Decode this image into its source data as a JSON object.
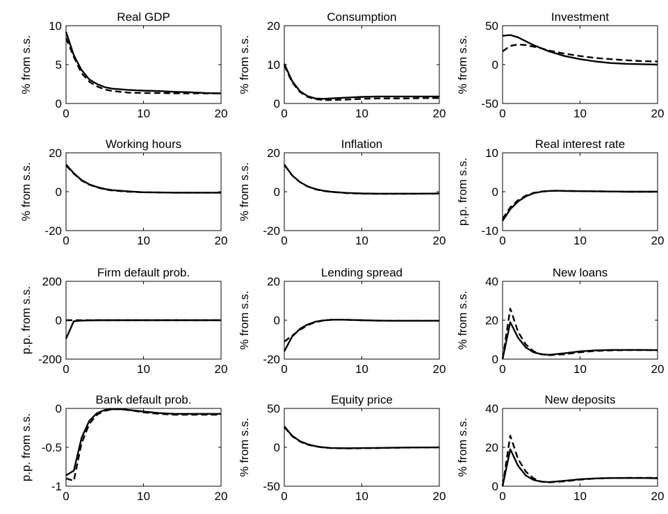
{
  "chart_data": [
    {
      "type": "line",
      "title": "Real GDP",
      "xlabel": "",
      "ylabel": "% from s.s.",
      "xlim": [
        0,
        20
      ],
      "ylim": [
        0,
        10
      ],
      "xticks": [
        "0",
        "10",
        "20"
      ],
      "yticks": [
        "0",
        "5",
        "10"
      ],
      "grid": false,
      "series": [
        {
          "style": "solid",
          "x": [
            0,
            1,
            2,
            3,
            4,
            5,
            6,
            8,
            10,
            12,
            14,
            16,
            18,
            20
          ],
          "y": [
            9.2,
            6.2,
            4.3,
            3.1,
            2.5,
            2.1,
            1.9,
            1.75,
            1.65,
            1.6,
            1.5,
            1.45,
            1.35,
            1.3
          ]
        },
        {
          "style": "dashed",
          "x": [
            0,
            1,
            2,
            3,
            4,
            5,
            6,
            8,
            10,
            12,
            14,
            16,
            18,
            20
          ],
          "y": [
            8.4,
            6.0,
            3.9,
            2.8,
            2.2,
            1.8,
            1.6,
            1.4,
            1.35,
            1.35,
            1.3,
            1.3,
            1.3,
            1.3
          ]
        }
      ]
    },
    {
      "type": "line",
      "title": "Consumption",
      "xlabel": "",
      "ylabel": "% from s.s.",
      "xlim": [
        0,
        20
      ],
      "ylim": [
        0,
        20
      ],
      "xticks": [
        "0",
        "10",
        "20"
      ],
      "yticks": [
        "0",
        "10",
        "20"
      ],
      "grid": false,
      "series": [
        {
          "style": "solid",
          "x": [
            0,
            1,
            2,
            3,
            4,
            5,
            6,
            8,
            10,
            12,
            14,
            16,
            18,
            20
          ],
          "y": [
            10.2,
            5.8,
            3.2,
            1.9,
            1.3,
            1.2,
            1.3,
            1.5,
            1.7,
            1.8,
            1.8,
            1.8,
            1.8,
            1.8
          ]
        },
        {
          "style": "dashed",
          "x": [
            0,
            1,
            2,
            3,
            4,
            5,
            6,
            8,
            10,
            12,
            14,
            16,
            18,
            20
          ],
          "y": [
            9.8,
            5.5,
            3.0,
            1.7,
            1.1,
            0.9,
            0.9,
            1.0,
            1.2,
            1.3,
            1.3,
            1.3,
            1.4,
            1.4
          ]
        }
      ]
    },
    {
      "type": "line",
      "title": "Investment",
      "xlabel": "",
      "ylabel": "% from s.s.",
      "xlim": [
        0,
        20
      ],
      "ylim": [
        -50,
        50
      ],
      "xticks": [
        "0",
        "10",
        "20"
      ],
      "yticks": [
        "-50",
        "0",
        "50"
      ],
      "grid": false,
      "series": [
        {
          "style": "solid",
          "x": [
            0,
            1,
            2,
            3,
            4,
            5,
            6,
            8,
            10,
            12,
            14,
            16,
            18,
            20
          ],
          "y": [
            37,
            38,
            35,
            30,
            25,
            21,
            17,
            11,
            7,
            4,
            2,
            1,
            0.5,
            0
          ]
        },
        {
          "style": "dashed",
          "x": [
            0,
            1,
            2,
            3,
            4,
            5,
            6,
            8,
            10,
            12,
            14,
            16,
            18,
            20
          ],
          "y": [
            17,
            24,
            26,
            25,
            23,
            21,
            18,
            14,
            11,
            8.5,
            7,
            5.5,
            4.5,
            4
          ]
        }
      ]
    },
    {
      "type": "line",
      "title": "Working hours",
      "xlabel": "",
      "ylabel": "% from s.s.",
      "xlim": [
        0,
        20
      ],
      "ylim": [
        -20,
        20
      ],
      "xticks": [
        "0",
        "10",
        "20"
      ],
      "yticks": [
        "-20",
        "0",
        "20"
      ],
      "grid": false,
      "series": [
        {
          "style": "solid",
          "x": [
            0,
            1,
            2,
            3,
            4,
            5,
            6,
            8,
            10,
            12,
            14,
            16,
            18,
            20
          ],
          "y": [
            14,
            9.5,
            6.0,
            3.8,
            2.4,
            1.4,
            0.8,
            0.2,
            -0.3,
            -0.4,
            -0.5,
            -0.5,
            -0.5,
            -0.5
          ]
        },
        {
          "style": "dashed",
          "x": [
            0,
            1,
            2,
            3,
            4,
            5,
            6,
            8,
            10,
            12,
            14,
            16,
            18,
            20
          ],
          "y": [
            13.5,
            9.3,
            5.8,
            3.6,
            2.2,
            1.2,
            0.6,
            0.0,
            -0.3,
            -0.4,
            -0.5,
            -0.5,
            -0.5,
            -0.5
          ]
        }
      ]
    },
    {
      "type": "line",
      "title": "Inflation",
      "xlabel": "",
      "ylabel": "% from s.s.",
      "xlim": [
        0,
        20
      ],
      "ylim": [
        -20,
        20
      ],
      "xticks": [
        "0",
        "10",
        "20"
      ],
      "yticks": [
        "-20",
        "0",
        "20"
      ],
      "grid": false,
      "series": [
        {
          "style": "solid",
          "x": [
            0,
            1,
            2,
            3,
            4,
            5,
            6,
            8,
            10,
            12,
            14,
            16,
            18,
            20
          ],
          "y": [
            14,
            8.5,
            5.0,
            2.8,
            1.4,
            0.5,
            0.0,
            -0.6,
            -0.9,
            -1.0,
            -1.0,
            -1.0,
            -1.0,
            -0.9
          ]
        },
        {
          "style": "dashed",
          "x": [
            0,
            1,
            2,
            3,
            4,
            5,
            6,
            8,
            10,
            12,
            14,
            16,
            18,
            20
          ],
          "y": [
            13.8,
            8.4,
            5.0,
            2.7,
            1.3,
            0.4,
            -0.1,
            -0.7,
            -1.0,
            -1.1,
            -1.1,
            -1.1,
            -1.0,
            -1.0
          ]
        }
      ]
    },
    {
      "type": "line",
      "title": "Real interest rate",
      "xlabel": "",
      "ylabel": "p.p. from s.s.",
      "xlim": [
        0,
        20
      ],
      "ylim": [
        -10,
        10
      ],
      "xticks": [
        "0",
        "10",
        "20"
      ],
      "yticks": [
        "-10",
        "0",
        "10"
      ],
      "grid": false,
      "series": [
        {
          "style": "solid",
          "x": [
            0,
            1,
            2,
            3,
            4,
            5,
            6,
            7,
            8,
            10,
            12,
            14,
            16,
            18,
            20
          ],
          "y": [
            -7.5,
            -4.5,
            -2.5,
            -1.2,
            -0.4,
            0.0,
            0.2,
            0.25,
            0.2,
            0.15,
            0.1,
            0.05,
            0.0,
            0.0,
            0.0
          ]
        },
        {
          "style": "dashed",
          "x": [
            0,
            1,
            2,
            3,
            4,
            5,
            6,
            7,
            8,
            10,
            12,
            14,
            16,
            18,
            20
          ],
          "y": [
            -7.0,
            -4.0,
            -2.2,
            -1.0,
            -0.3,
            0.05,
            0.2,
            0.25,
            0.2,
            0.15,
            0.1,
            0.05,
            0.0,
            0.0,
            0.0
          ]
        }
      ]
    },
    {
      "type": "line",
      "title": "Firm default prob.",
      "xlabel": "",
      "ylabel": "p.p. from s.s.",
      "xlim": [
        0,
        20
      ],
      "ylim": [
        -200,
        200
      ],
      "xticks": [
        "0",
        "10",
        "20"
      ],
      "yticks": [
        "-200",
        "0",
        "200"
      ],
      "grid": false,
      "series": [
        {
          "style": "solid",
          "x": [
            0,
            1,
            2,
            3,
            4,
            5,
            6,
            8,
            10,
            12,
            14,
            16,
            18,
            20
          ],
          "y": [
            -95,
            -5,
            -2,
            -1,
            0,
            0,
            0,
            0,
            0,
            0,
            0,
            0,
            0,
            0
          ]
        },
        {
          "style": "dashed",
          "x": [
            0,
            1,
            2,
            3,
            4,
            5,
            6,
            8,
            10,
            12,
            14,
            16,
            18,
            20
          ],
          "y": [
            0,
            0,
            0,
            0,
            0,
            0,
            0,
            0,
            0,
            0,
            0,
            0,
            0,
            0
          ]
        }
      ]
    },
    {
      "type": "line",
      "title": "Lending spread",
      "xlabel": "",
      "ylabel": "% from s.s.",
      "xlim": [
        0,
        20
      ],
      "ylim": [
        -20,
        20
      ],
      "xticks": [
        "0",
        "10",
        "20"
      ],
      "yticks": [
        "-20",
        "0",
        "20"
      ],
      "grid": false,
      "series": [
        {
          "style": "solid",
          "x": [
            0,
            1,
            2,
            3,
            4,
            5,
            6,
            7,
            8,
            10,
            12,
            14,
            16,
            18,
            20
          ],
          "y": [
            -16,
            -8.5,
            -4.5,
            -2.2,
            -0.8,
            -0.1,
            0.2,
            0.3,
            0.2,
            0.0,
            -0.2,
            -0.3,
            -0.3,
            -0.3,
            -0.3
          ]
        },
        {
          "style": "dashed",
          "x": [
            0,
            1,
            2,
            3,
            4,
            5,
            6,
            7,
            8,
            10,
            12,
            14,
            16,
            18,
            20
          ],
          "y": [
            -11,
            -8.0,
            -5.0,
            -2.6,
            -1.0,
            -0.2,
            0.2,
            0.3,
            0.2,
            0.0,
            -0.2,
            -0.3,
            -0.3,
            -0.3,
            -0.3
          ]
        }
      ]
    },
    {
      "type": "line",
      "title": "New loans",
      "xlabel": "",
      "ylabel": "% from s.s.",
      "xlim": [
        0,
        20
      ],
      "ylim": [
        0,
        40
      ],
      "xticks": [
        "0",
        "10",
        "20"
      ],
      "yticks": [
        "0",
        "20",
        "40"
      ],
      "grid": false,
      "series": [
        {
          "style": "solid",
          "x": [
            0,
            1,
            2,
            3,
            4,
            5,
            6,
            8,
            10,
            12,
            14,
            16,
            18,
            20
          ],
          "y": [
            0,
            19,
            11,
            6,
            3.5,
            2.5,
            2.2,
            3,
            4,
            4.5,
            4.7,
            4.7,
            4.7,
            4.6
          ]
        },
        {
          "style": "dashed",
          "x": [
            0,
            1,
            2,
            3,
            4,
            5,
            6,
            8,
            10,
            12,
            14,
            16,
            18,
            20
          ],
          "y": [
            0,
            26,
            14,
            7.5,
            4,
            2.5,
            2,
            2.5,
            3.5,
            4.2,
            4.5,
            4.6,
            4.6,
            4.6
          ]
        }
      ]
    },
    {
      "type": "line",
      "title": "Bank default prob.",
      "xlabel": "",
      "ylabel": "p.p. from s.s.",
      "xlim": [
        0,
        20
      ],
      "ylim": [
        -1,
        0
      ],
      "xticks": [
        "0",
        "10",
        "20"
      ],
      "yticks": [
        "-1",
        "-0.5",
        "0"
      ],
      "grid": false,
      "series": [
        {
          "style": "solid",
          "x": [
            0,
            1,
            2,
            3,
            4,
            5,
            6,
            7,
            8,
            10,
            12,
            14,
            16,
            18,
            20
          ],
          "y": [
            -0.86,
            -0.8,
            -0.38,
            -0.16,
            -0.06,
            -0.02,
            -0.01,
            -0.01,
            -0.02,
            -0.04,
            -0.06,
            -0.07,
            -0.07,
            -0.07,
            -0.07
          ]
        },
        {
          "style": "dashed",
          "x": [
            0,
            1,
            2,
            3,
            4,
            5,
            6,
            7,
            8,
            10,
            12,
            14,
            16,
            18,
            20
          ],
          "y": [
            -0.9,
            -0.93,
            -0.45,
            -0.2,
            -0.08,
            -0.03,
            -0.01,
            -0.01,
            -0.02,
            -0.05,
            -0.07,
            -0.08,
            -0.08,
            -0.08,
            -0.08
          ]
        }
      ]
    },
    {
      "type": "line",
      "title": "Equity price",
      "xlabel": "",
      "ylabel": "% from s.s.",
      "xlim": [
        0,
        20
      ],
      "ylim": [
        -50,
        50
      ],
      "xticks": [
        "0",
        "10",
        "20"
      ],
      "yticks": [
        "-50",
        "0",
        "50"
      ],
      "grid": false,
      "series": [
        {
          "style": "solid",
          "x": [
            0,
            1,
            2,
            3,
            4,
            5,
            6,
            8,
            10,
            12,
            14,
            16,
            18,
            20
          ],
          "y": [
            27,
            15,
            8,
            4,
            1.5,
            0,
            -0.8,
            -1.2,
            -1,
            -0.8,
            -0.5,
            -0.3,
            -0.2,
            -0.1
          ]
        },
        {
          "style": "dashed",
          "x": [
            0,
            1,
            2,
            3,
            4,
            5,
            6,
            8,
            10,
            12,
            14,
            16,
            18,
            20
          ],
          "y": [
            26,
            14.5,
            7.5,
            3.5,
            1.2,
            -0.2,
            -1,
            -1.4,
            -1.2,
            -0.9,
            -0.6,
            -0.4,
            -0.2,
            -0.1
          ]
        }
      ]
    },
    {
      "type": "line",
      "title": "New deposits",
      "xlabel": "",
      "ylabel": "% from s.s.",
      "xlim": [
        0,
        20
      ],
      "ylim": [
        0,
        40
      ],
      "xticks": [
        "0",
        "10",
        "20"
      ],
      "yticks": [
        "0",
        "20",
        "40"
      ],
      "grid": false,
      "series": [
        {
          "style": "solid",
          "x": [
            0,
            1,
            2,
            3,
            4,
            5,
            6,
            8,
            10,
            12,
            14,
            16,
            18,
            20
          ],
          "y": [
            0,
            19,
            10.5,
            5.5,
            3.2,
            2.3,
            2.1,
            2.8,
            3.6,
            4,
            4.2,
            4.2,
            4.2,
            4.1
          ]
        },
        {
          "style": "dashed",
          "x": [
            0,
            1,
            2,
            3,
            4,
            5,
            6,
            8,
            10,
            12,
            14,
            16,
            18,
            20
          ],
          "y": [
            0,
            26,
            14,
            7.5,
            4,
            2.4,
            2,
            2.5,
            3.4,
            4,
            4.2,
            4.3,
            4.3,
            4.3
          ]
        }
      ]
    }
  ]
}
